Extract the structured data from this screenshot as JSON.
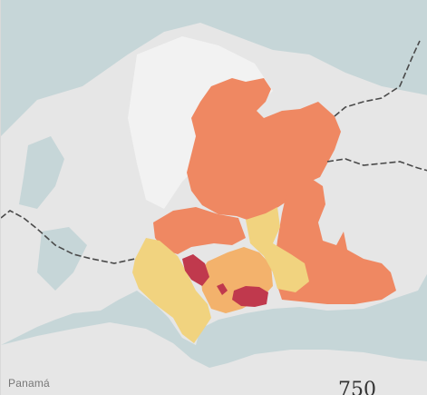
{
  "map": {
    "place_label": "Panamá",
    "legend_value": "750",
    "colors": {
      "water": "#c6d6d8",
      "land": "#e6e6e6",
      "land_highlight": "#f2f2f2",
      "border": "#4a4a4a",
      "choropleth": {
        "light": "#f1d37f",
        "lightmid": "#f3b26c",
        "mid": "#ef8862",
        "dark": "#c0394d"
      }
    },
    "regions": [
      {
        "name": "northern-district",
        "class": "mid"
      },
      {
        "name": "eastern-district",
        "class": "mid"
      },
      {
        "name": "western-district",
        "class": "mid"
      },
      {
        "name": "coastal-west-district",
        "class": "light"
      },
      {
        "name": "central-district-a",
        "class": "lightmid"
      },
      {
        "name": "central-district-b",
        "class": "light"
      },
      {
        "name": "urban-district-a",
        "class": "dark"
      },
      {
        "name": "urban-district-b",
        "class": "dark"
      },
      {
        "name": "urban-district-c",
        "class": "dark"
      }
    ]
  }
}
